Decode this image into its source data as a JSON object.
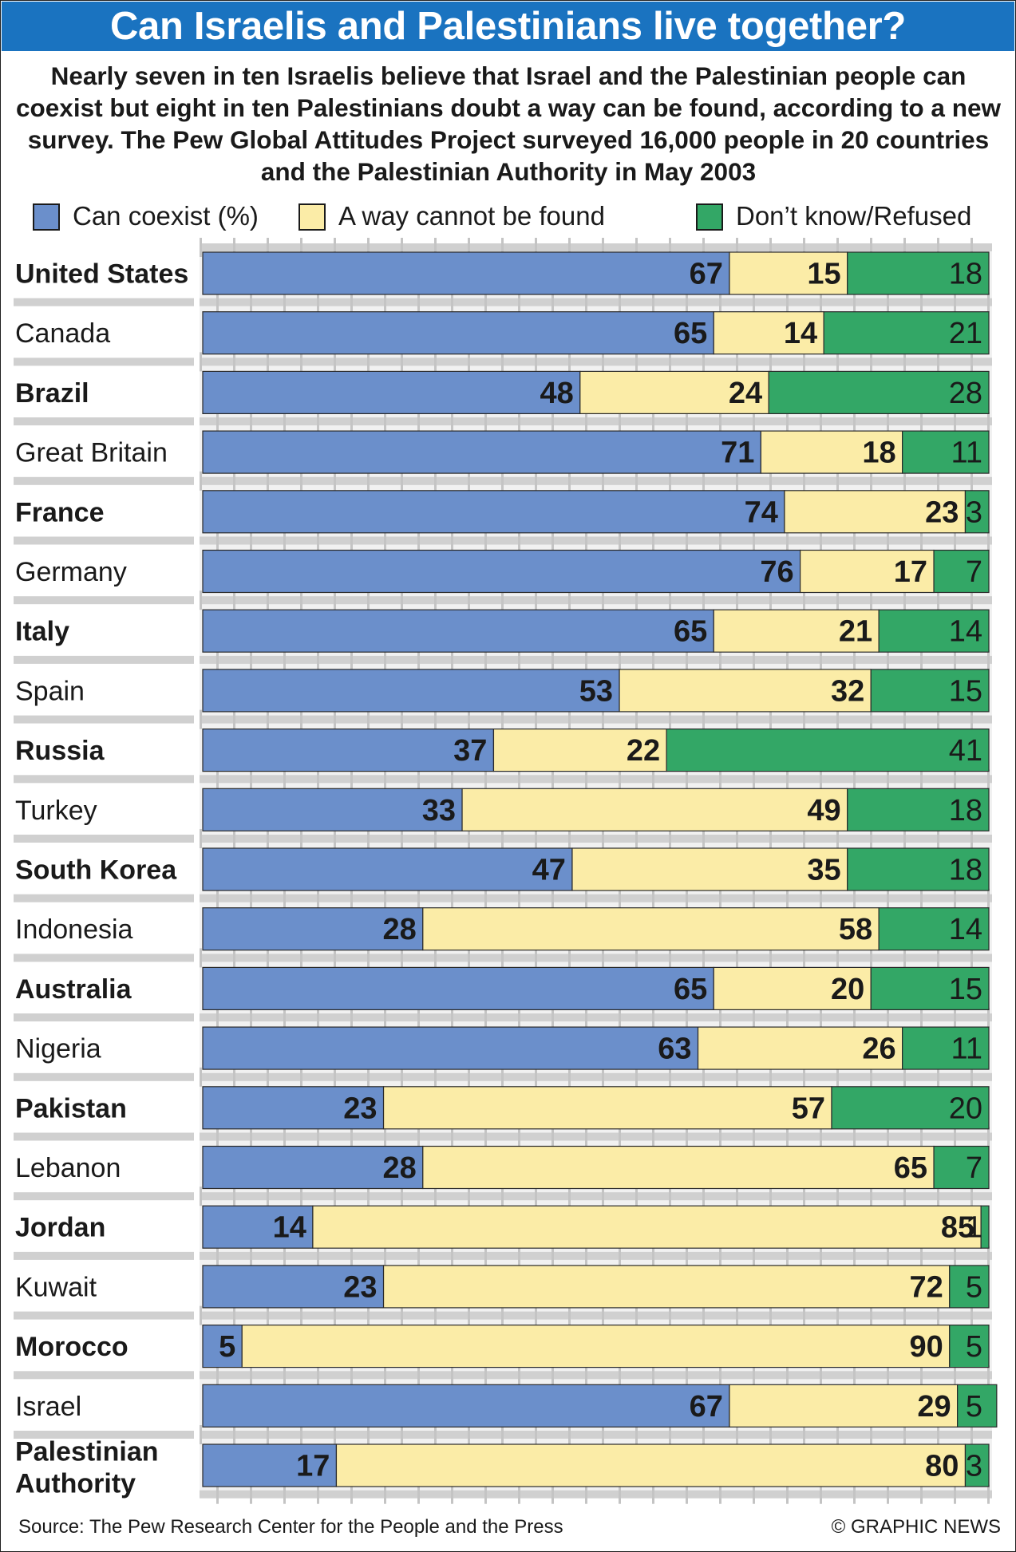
{
  "title": "Can Israelis and Palestinians live together?",
  "subtitle": "Nearly seven in ten Israelis believe that Israel and the Palestinian people can coexist but eight in ten Palestinians doubt a way can be found, according to a new survey. The Pew Global Attitudes Project surveyed 16,000 people in 20 countries and the Palestinian Authority in May 2003",
  "legend": [
    {
      "label": "Can coexist (%)",
      "color": "#6b8fcb"
    },
    {
      "label": "A way cannot be found",
      "color": "#fbeca7"
    },
    {
      "label": "Don’t know/Refused",
      "color": "#33a766"
    }
  ],
  "footer": {
    "source": "Source: The Pew Research Center for the People and the Press",
    "credit": "© GRAPHIC NEWS"
  },
  "chart_data": {
    "type": "bar",
    "stacked": true,
    "orientation": "horizontal",
    "title": "Can Israelis and Palestinians live together?",
    "xlim": [
      0,
      100
    ],
    "unit": "%",
    "categories": [
      "United States",
      "Canada",
      "Brazil",
      "Great Britain",
      "France",
      "Germany",
      "Italy",
      "Spain",
      "Russia",
      "Turkey",
      "South Korea",
      "Indonesia",
      "Australia",
      "Nigeria",
      "Pakistan",
      "Lebanon",
      "Jordan",
      "Kuwait",
      "Morocco",
      "Israel",
      "Palestinian Authority"
    ],
    "category_lines": [
      [
        "United States"
      ],
      [
        "Canada"
      ],
      [
        "Brazil"
      ],
      [
        "Great Britain"
      ],
      [
        "France"
      ],
      [
        "Germany"
      ],
      [
        "Italy"
      ],
      [
        "Spain"
      ],
      [
        "Russia"
      ],
      [
        "Turkey"
      ],
      [
        "South Korea"
      ],
      [
        "Indonesia"
      ],
      [
        "Australia"
      ],
      [
        "Nigeria"
      ],
      [
        "Pakistan"
      ],
      [
        "Lebanon"
      ],
      [
        "Jordan"
      ],
      [
        "Kuwait"
      ],
      [
        "Morocco"
      ],
      [
        "Israel"
      ],
      [
        "Palestinian",
        "Authority"
      ]
    ],
    "series": [
      {
        "name": "Can coexist (%)",
        "color": "#6b8fcb",
        "values": [
          67,
          65,
          48,
          71,
          74,
          76,
          65,
          53,
          37,
          33,
          47,
          28,
          65,
          63,
          23,
          28,
          14,
          23,
          5,
          67,
          17
        ]
      },
      {
        "name": "A way cannot be found",
        "color": "#fbeca7",
        "values": [
          15,
          14,
          24,
          18,
          23,
          17,
          21,
          32,
          22,
          49,
          35,
          58,
          20,
          26,
          57,
          65,
          85,
          72,
          90,
          29,
          80
        ]
      },
      {
        "name": "Don’t know/Refused",
        "color": "#33a766",
        "values": [
          18,
          21,
          28,
          11,
          3,
          7,
          14,
          15,
          41,
          18,
          18,
          14,
          15,
          11,
          20,
          7,
          1,
          5,
          5,
          5,
          3
        ]
      }
    ]
  }
}
